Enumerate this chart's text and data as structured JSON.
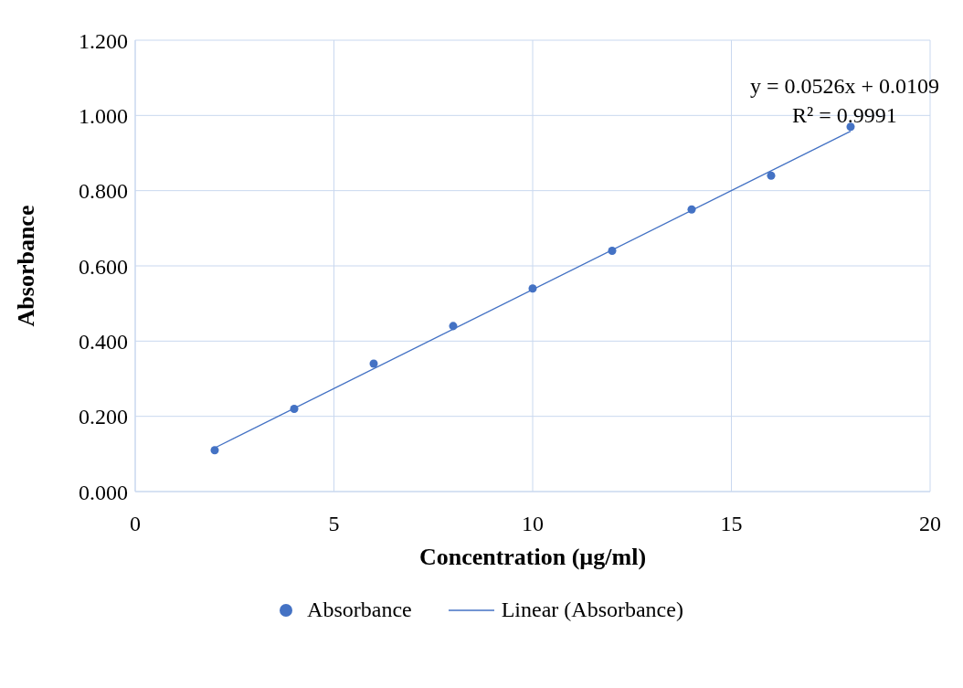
{
  "chart_data": {
    "type": "scatter",
    "xlabel": "Concentration (µg/ml)",
    "ylabel": "Absorbance",
    "series": [
      {
        "name": "Absorbance",
        "type": "scatter",
        "color": "#4472c4",
        "marker": "circle",
        "x": [
          2,
          4,
          6,
          8,
          10,
          12,
          14,
          16,
          18
        ],
        "values": [
          0.11,
          0.22,
          0.34,
          0.44,
          0.54,
          0.64,
          0.75,
          0.84,
          0.97
        ]
      },
      {
        "name": "Linear (Absorbance)",
        "type": "line",
        "marker": "none",
        "color": "#4472c4",
        "x": [
          2,
          18
        ],
        "values": [
          0.116,
          0.958
        ]
      }
    ],
    "xlim": [
      0,
      20
    ],
    "xticks": [
      0,
      5,
      10,
      15,
      20
    ],
    "ylim": [
      0,
      1.2
    ],
    "yticks": [
      {
        "value": 0,
        "label": "0.000"
      },
      {
        "value": 0.2,
        "label": "0.200"
      },
      {
        "value": 0.4,
        "label": "0.400"
      },
      {
        "value": 0.6,
        "label": "0.600"
      },
      {
        "value": 0.8,
        "label": "0.800"
      },
      {
        "value": 1,
        "label": "1.000"
      },
      {
        "value": 1.2,
        "label": "1.200"
      }
    ],
    "annotations": [
      "y = 0.0526x + 0.0109",
      "R² = 0.9991"
    ],
    "grid": true,
    "legend": "bottom",
    "line_style": "solid"
  }
}
